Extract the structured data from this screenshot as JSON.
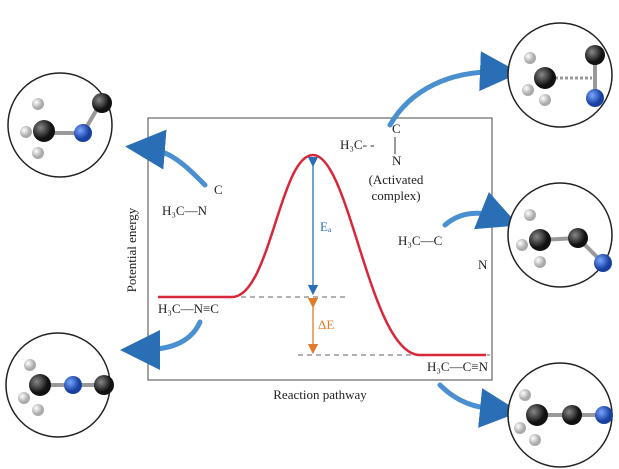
{
  "axes": {
    "y_label": "Potential energy",
    "x_label": "Reaction pathway"
  },
  "labels": {
    "reactant": "H₃C—N≡C",
    "product": "H₃C—C≡N",
    "bent_reactant": [
      "H₃C—N",
      "C"
    ],
    "activated_complex": [
      "H₃C- -",
      "C",
      "N",
      "(Activated",
      "complex)"
    ],
    "bent_product": [
      "H₃C—C",
      "N"
    ],
    "ea": "Eₐ",
    "delta_e": "ΔE"
  }
}
